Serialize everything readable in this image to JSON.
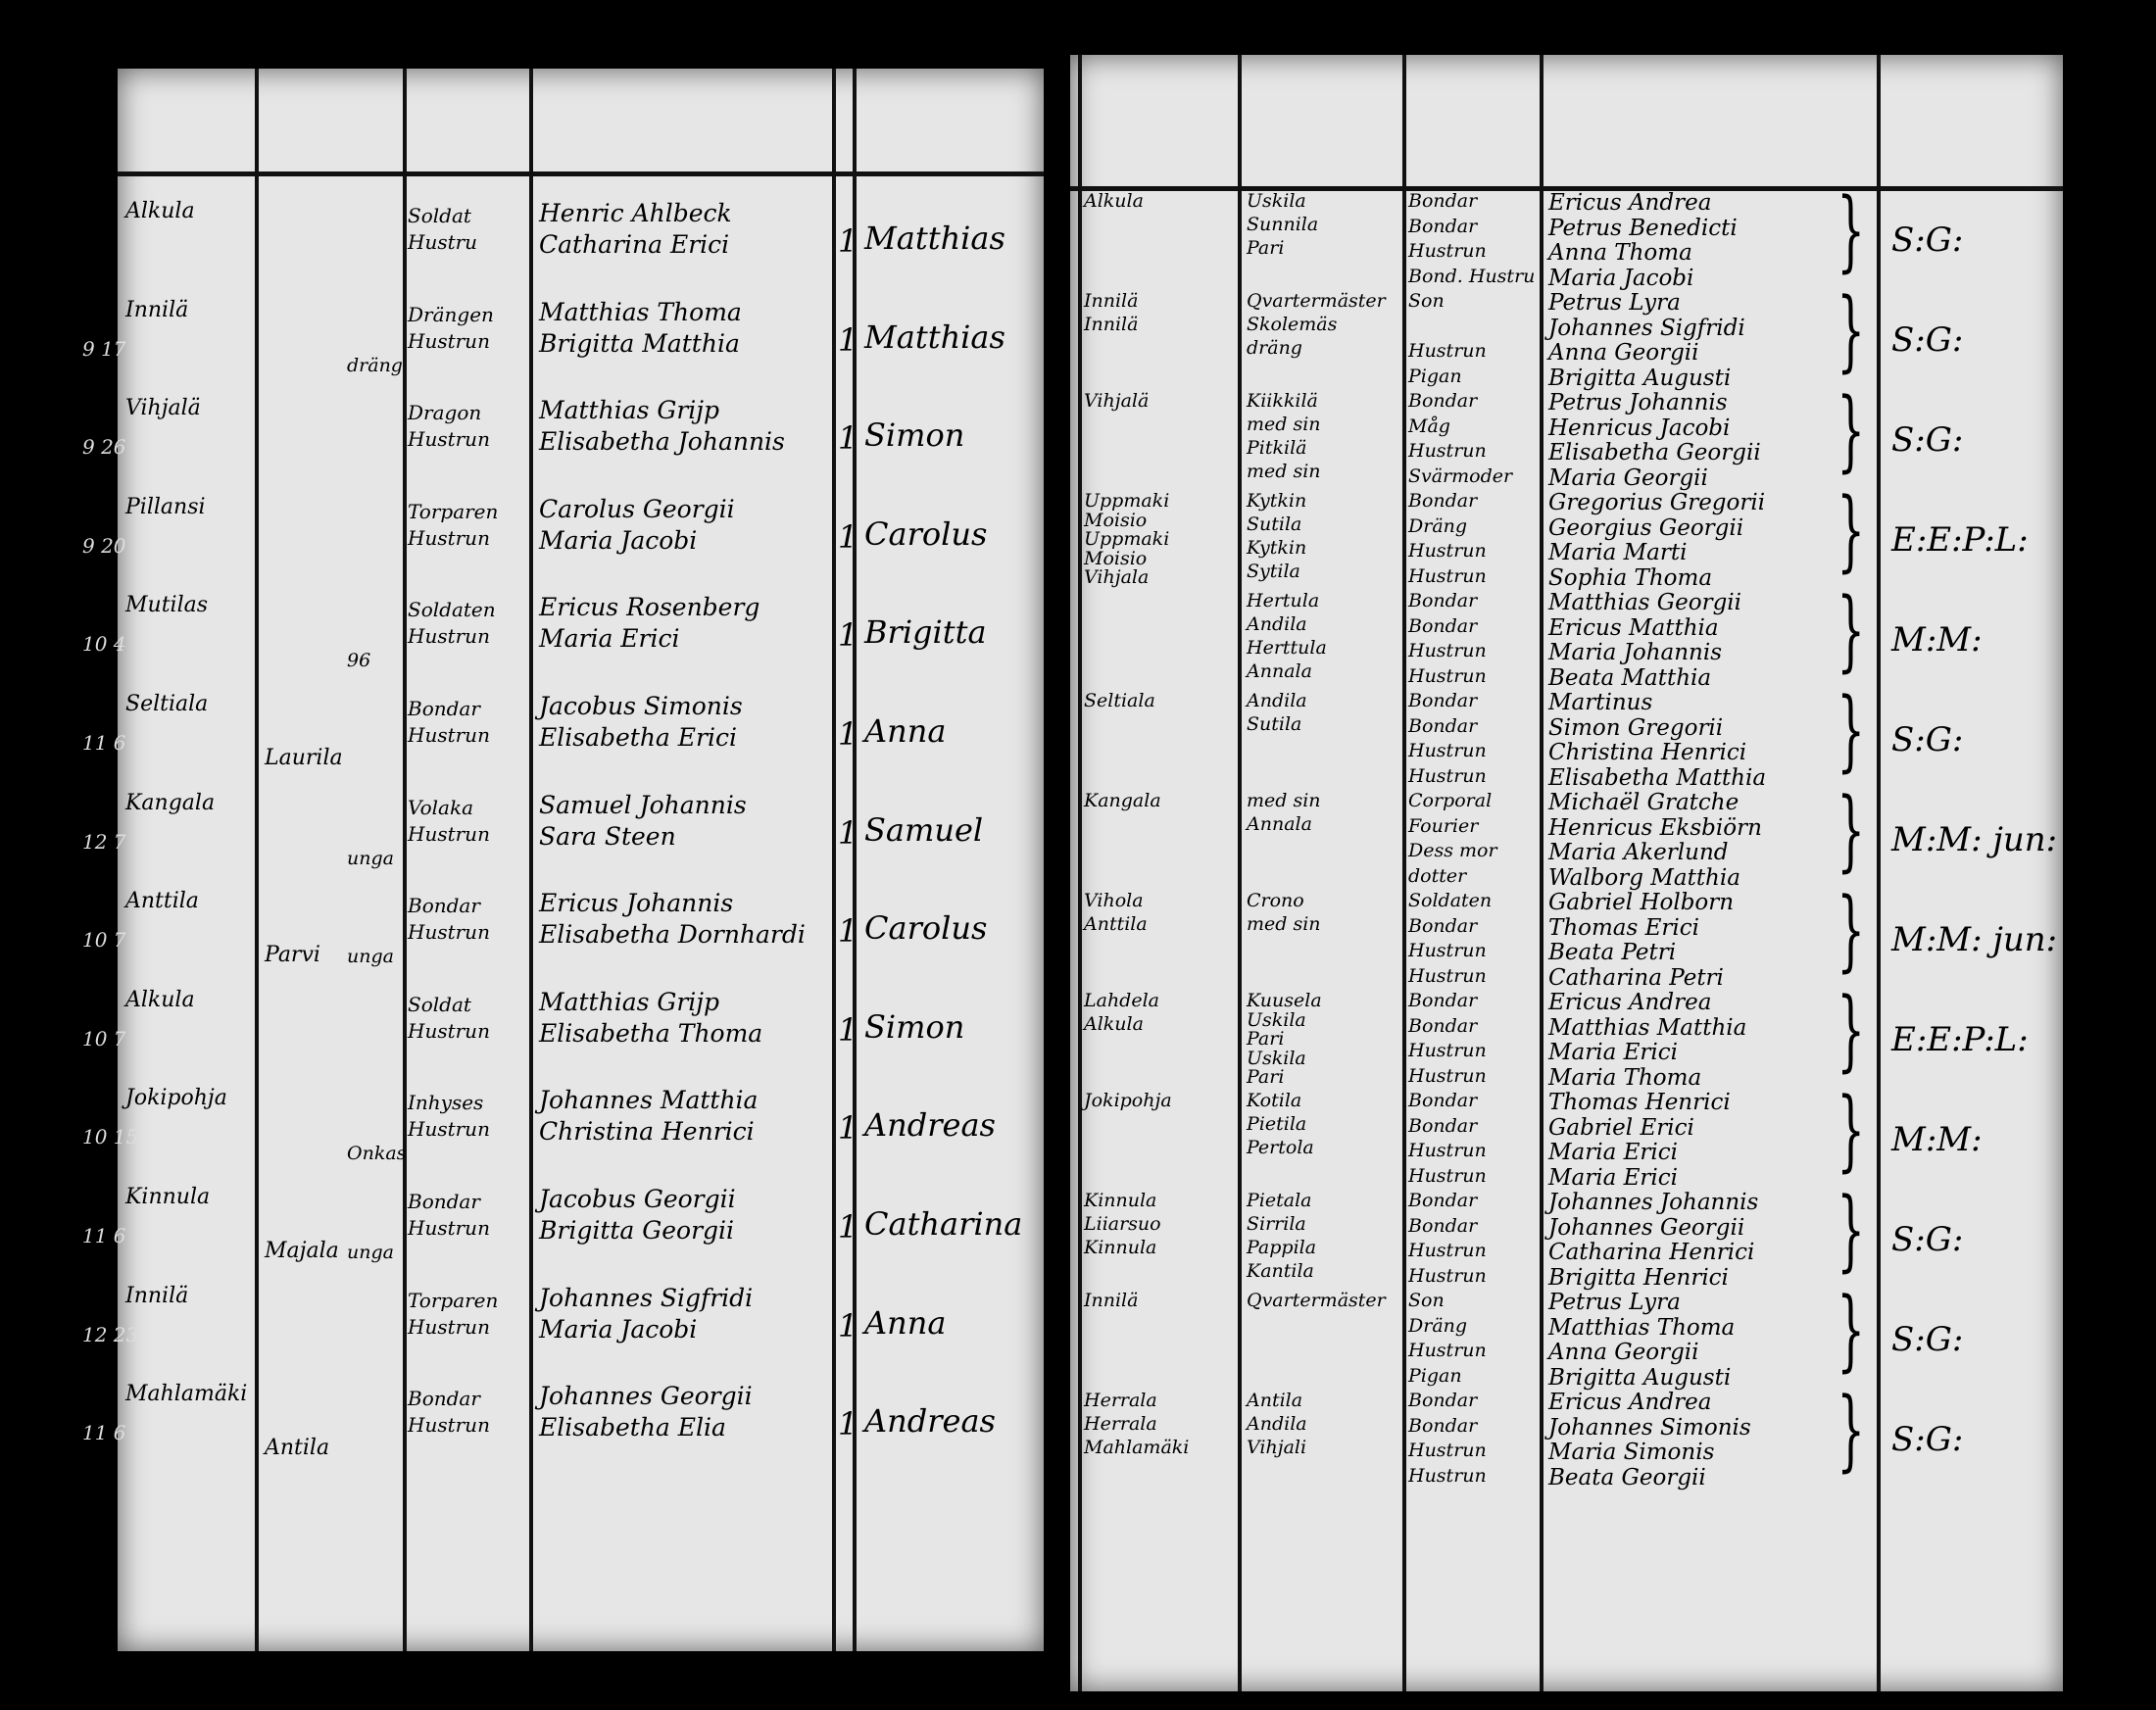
{
  "left_page": {
    "rows": [
      {
        "date": "",
        "place": "Alkula",
        "col2": "",
        "col3": "",
        "title": [
          "Soldat",
          "Hustru"
        ],
        "parents": [
          "Henric Ahlbeck",
          "Catharina Erici"
        ],
        "count": "1",
        "child": "Matthias"
      },
      {
        "date": "9 17",
        "place": "Innilä",
        "col2": "",
        "col3": "dräng",
        "title": [
          "Drängen",
          "Hustrun"
        ],
        "parents": [
          "Matthias Thoma",
          "Brigitta Matthia"
        ],
        "count": "1",
        "child": "Matthias"
      },
      {
        "date": "9 26",
        "place": "Vihjalä",
        "col2": "",
        "col3": "",
        "title": [
          "Dragon",
          "Hustrun"
        ],
        "parents": [
          "Matthias Grijp",
          "Elisabetha Johannis"
        ],
        "count": "1",
        "child": "Simon"
      },
      {
        "date": "9 20",
        "place": "Pillansi",
        "col2": "",
        "col3": "",
        "title": [
          "Torparen",
          "Hustrun"
        ],
        "parents": [
          "Carolus Georgii",
          "Maria Jacobi"
        ],
        "count": "1",
        "child": "Carolus"
      },
      {
        "date": "10 4",
        "place": "Mutilas",
        "col2": "",
        "col3": "96",
        "title": [
          "Soldaten",
          "Hustrun"
        ],
        "parents": [
          "Ericus Rosenberg",
          "Maria Erici"
        ],
        "count": "1",
        "child": "Brigitta"
      },
      {
        "date": "11 6",
        "place": "Seltiala",
        "col2": "Laurila",
        "col3": "",
        "title": [
          "Bondar",
          "Hustrun"
        ],
        "parents": [
          "Jacobus Simonis",
          "Elisabetha Erici"
        ],
        "count": "1",
        "child": "Anna"
      },
      {
        "date": "12 7",
        "place": "Kangala",
        "col2": "",
        "col3": "unga",
        "title": [
          "Volaka",
          "Hustrun"
        ],
        "parents": [
          "Samuel Johannis",
          "Sara Steen"
        ],
        "count": "1",
        "child": "Samuel"
      },
      {
        "date": "10 7",
        "place": "Anttila",
        "col2": "Parvi",
        "col3": "unga",
        "title": [
          "Bondar",
          "Hustrun"
        ],
        "parents": [
          "Ericus Johannis",
          "Elisabetha Dornhardi"
        ],
        "count": "1",
        "child": "Carolus"
      },
      {
        "date": "10 7",
        "place": "Alkula",
        "col2": "",
        "col3": "",
        "title": [
          "Soldat",
          "Hustrun"
        ],
        "parents": [
          "Matthias Grijp",
          "Elisabetha Thoma"
        ],
        "count": "1",
        "child": "Simon"
      },
      {
        "date": "10 15",
        "place": "Jokipohja",
        "col2": "",
        "col3": "Onkas",
        "title": [
          "Inhyses",
          "Hustrun"
        ],
        "parents": [
          "Johannes Matthia",
          "Christina Henrici"
        ],
        "count": "1",
        "child": "Andreas"
      },
      {
        "date": "11 6",
        "place": "Kinnula",
        "col2": "Majala",
        "col3": "unga",
        "title": [
          "Bondar",
          "Hustrun"
        ],
        "parents": [
          "Jacobus Georgii",
          "Brigitta Georgii"
        ],
        "count": "1",
        "child": "Catharina"
      },
      {
        "date": "12 23",
        "place": "Innilä",
        "col2": "",
        "col3": "",
        "title": [
          "Torparen",
          "Hustrun"
        ],
        "parents": [
          "Johannes Sigfridi",
          "Maria Jacobi"
        ],
        "count": "1",
        "child": "Anna"
      },
      {
        "date": "11 6",
        "place": "Mahlamäki",
        "col2": "Antila",
        "col3": "",
        "title": [
          "Bondar",
          "Hustrun"
        ],
        "parents": [
          "Johannes Georgii",
          "Elisabetha Elia"
        ],
        "count": "1",
        "child": "Andreas"
      }
    ]
  },
  "right_page": {
    "groups": [
      {
        "col1": [
          "Alkula"
        ],
        "col2": [
          "Uskila",
          "Sunnila",
          "Pari"
        ],
        "col3": [
          "Bondar",
          "Bondar",
          "Hustrun",
          "Bond. Hustru"
        ],
        "names": [
          "Ericus Andrea",
          "Petrus Benedicti",
          "Anna Thoma",
          "Maria Jacobi"
        ],
        "initials": "S:G:"
      },
      {
        "col1": [
          "Innilä",
          "Innilä"
        ],
        "col2": [
          "Qvartermäster",
          "Skolemäs",
          "dräng"
        ],
        "col3": [
          "Son",
          "",
          "Hustrun",
          "Pigan"
        ],
        "names": [
          "Petrus Lyra",
          "Johannes Sigfridi",
          "Anna Georgii",
          "Brigitta Augusti"
        ],
        "initials": "S:G:"
      },
      {
        "col1": [
          "Vihjalä"
        ],
        "col2": [
          "Kiikkilä",
          "med sin",
          "Pitkilä",
          "med sin"
        ],
        "col3": [
          "Bondar",
          "Måg",
          "Hustrun",
          "Svärmoder"
        ],
        "names": [
          "Petrus Johannis",
          "Henricus Jacobi",
          "Elisabetha Georgii",
          "Maria Georgii"
        ],
        "initials": "S:G:"
      },
      {
        "col1": [
          "Uppmaki",
          "Moisio",
          "Uppmaki",
          "Moisio",
          "Vihjala"
        ],
        "col2": [
          "Kytkin",
          "Sutila",
          "Kytkin",
          "Sytila"
        ],
        "col3": [
          "Bondar",
          "Dräng",
          "Hustrun",
          "Hustrun"
        ],
        "names": [
          "Gregorius Gregorii",
          "Georgius Georgii",
          "Maria Marti",
          "Sophia Thoma"
        ],
        "initials": "E:E:P:L:"
      },
      {
        "col1": [],
        "col2": [
          "Hertula",
          "Andila",
          "Herttula",
          "Annala"
        ],
        "col3": [
          "Bondar",
          "Bondar",
          "Hustrun",
          "Hustrun"
        ],
        "names": [
          "Matthias Georgii",
          "Ericus Matthia",
          "Maria Johannis",
          "Beata Matthia"
        ],
        "initials": "M:M:"
      },
      {
        "col1": [
          "Seltiala"
        ],
        "col2": [
          "Andila",
          "Sutila"
        ],
        "col3": [
          "Bondar",
          "Bondar",
          "Hustrun",
          "Hustrun"
        ],
        "names": [
          "Martinus",
          "Simon Gregorii",
          "Christina Henrici",
          "Elisabetha Matthia"
        ],
        "initials": "S:G:"
      },
      {
        "col1": [
          "Kangala"
        ],
        "col2": [
          "med sin",
          "Annala"
        ],
        "col3": [
          "Corporal",
          "Fourier",
          "Dess mor",
          "dotter"
        ],
        "names": [
          "Michaël Gratche",
          "Henricus Eksbiörn",
          "Maria Akerlund",
          "Walborg Matthia"
        ],
        "initials": "M:M: jun:"
      },
      {
        "col1": [
          "Vihola",
          "Anttila"
        ],
        "col2": [
          "Crono",
          "med sin"
        ],
        "col3": [
          "Soldaten",
          "Bondar",
          "Hustrun",
          "Hustrun"
        ],
        "names": [
          "Gabriel Holborn",
          "Thomas Erici",
          "Beata Petri",
          "Catharina Petri"
        ],
        "initials": "M:M: jun:"
      },
      {
        "col1": [
          "Lahdela",
          "Alkula"
        ],
        "col2": [
          "Kuusela",
          "Uskila",
          "Pari",
          "Uskila",
          "Pari"
        ],
        "col3": [
          "Bondar",
          "Bondar",
          "Hustrun",
          "Hustrun"
        ],
        "names": [
          "Ericus Andrea",
          "Matthias Matthia",
          "Maria Erici",
          "Maria Thoma"
        ],
        "initials": "E:E:P:L:"
      },
      {
        "col1": [
          "Jokipohja"
        ],
        "col2": [
          "Kotila",
          "Pietila",
          "Pertola"
        ],
        "col3": [
          "Bondar",
          "Bondar",
          "Hustrun",
          "Hustrun"
        ],
        "names": [
          "Thomas Henrici",
          "Gabriel Erici",
          "Maria Erici",
          "Maria Erici"
        ],
        "initials": "M:M:"
      },
      {
        "col1": [
          "Kinnula",
          "Liiarsuo",
          "Kinnula"
        ],
        "col2": [
          "Pietala",
          "Sirrila",
          "Pappila",
          "Kantila"
        ],
        "col3": [
          "Bondar",
          "Bondar",
          "Hustrun",
          "Hustrun"
        ],
        "names": [
          "Johannes Johannis",
          "Johannes Georgii",
          "Catharina Henrici",
          "Brigitta Henrici"
        ],
        "initials": "S:G:"
      },
      {
        "col1": [
          "Innilä"
        ],
        "col2": [
          "Qvartermäster"
        ],
        "col3": [
          "Son",
          "Dräng",
          "Hustrun",
          "Pigan"
        ],
        "names": [
          "Petrus Lyra",
          "Matthias Thoma",
          "Anna Georgii",
          "Brigitta Augusti"
        ],
        "initials": "S:G:"
      },
      {
        "col1": [
          "Herrala",
          "Herrala",
          "Mahlamäki"
        ],
        "col2": [
          "Antila",
          "Andila",
          "Vihjali"
        ],
        "col3": [
          "Bondar",
          "Bondar",
          "Hustrun",
          "Hustrun"
        ],
        "names": [
          "Ericus Andrea",
          "Johannes Simonis",
          "Maria Simonis",
          "Beata Georgii"
        ],
        "initials": "S:G:"
      }
    ]
  }
}
